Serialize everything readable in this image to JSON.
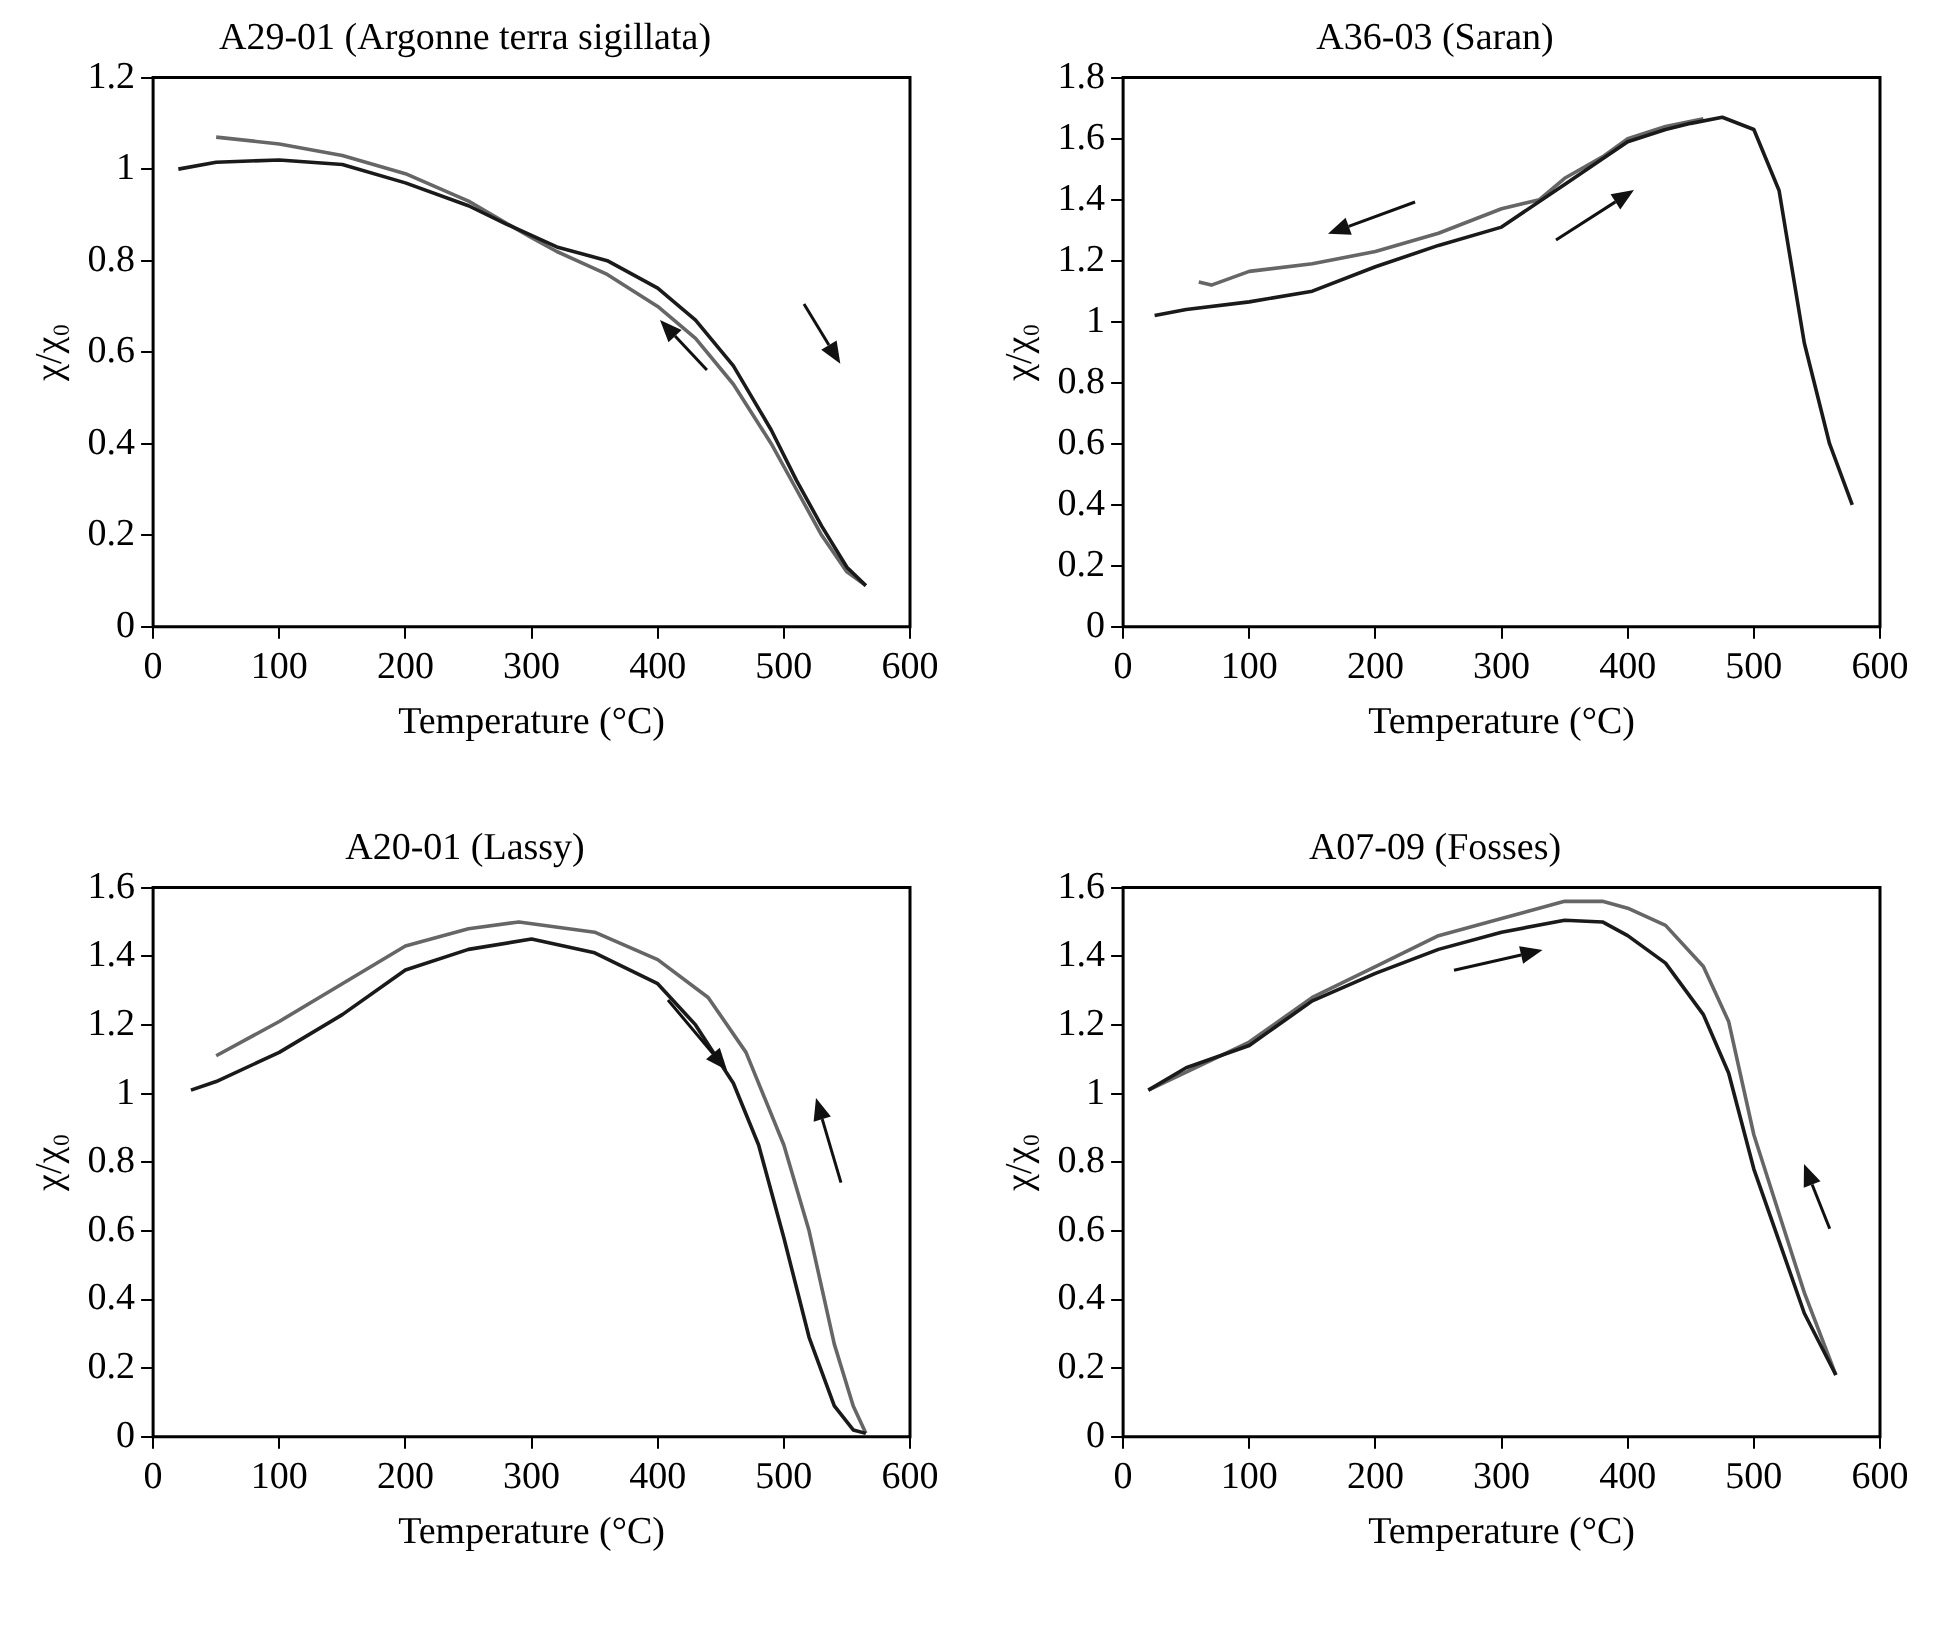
{
  "chart_data": [
    {
      "type": "line",
      "title": "A29-01 (Argonne terra sigillata)",
      "xlabel": "Temperature (°C)",
      "ylabel": "χ/χ₀",
      "xlim": [
        0,
        600
      ],
      "xticks": [
        0,
        100,
        200,
        300,
        400,
        500,
        600
      ],
      "ylim": [
        0,
        1.2
      ],
      "yticks": [
        0,
        0.2,
        0.4,
        0.6,
        0.8,
        1,
        1.2
      ],
      "grid": false,
      "legend": false,
      "series": [
        {
          "color": "#1a1a1a",
          "x": [
            20,
            50,
            100,
            150,
            200,
            250,
            280,
            320,
            360,
            400,
            430,
            460,
            490,
            510,
            530,
            550,
            565
          ],
          "values": [
            1.0,
            1.015,
            1.02,
            1.01,
            0.97,
            0.92,
            0.88,
            0.83,
            0.8,
            0.74,
            0.67,
            0.57,
            0.43,
            0.32,
            0.22,
            0.13,
            0.09
          ]
        },
        {
          "color": "#666666",
          "x": [
            50,
            100,
            150,
            200,
            250,
            300,
            320,
            360,
            400,
            430,
            460,
            490,
            510,
            530,
            550,
            565
          ],
          "values": [
            1.07,
            1.055,
            1.03,
            0.99,
            0.93,
            0.85,
            0.82,
            0.77,
            0.7,
            0.63,
            0.53,
            0.4,
            0.3,
            0.2,
            0.12,
            0.09
          ]
        }
      ]
    },
    {
      "type": "line",
      "title": "A36-03 (Saran)",
      "xlabel": "Temperature (°C)",
      "ylabel": "χ/χ₀",
      "xlim": [
        0,
        600
      ],
      "xticks": [
        0,
        100,
        200,
        300,
        400,
        500,
        600
      ],
      "ylim": [
        0,
        1.8
      ],
      "yticks": [
        0,
        0.2,
        0.4,
        0.6,
        0.8,
        1,
        1.2,
        1.4,
        1.6,
        1.8
      ],
      "grid": false,
      "legend": false,
      "series": [
        {
          "color": "#1a1a1a",
          "x": [
            25,
            50,
            100,
            150,
            200,
            250,
            300,
            350,
            400,
            430,
            450,
            475,
            500,
            520,
            540,
            560,
            578
          ],
          "values": [
            1.02,
            1.04,
            1.065,
            1.1,
            1.18,
            1.25,
            1.31,
            1.45,
            1.59,
            1.63,
            1.65,
            1.67,
            1.63,
            1.43,
            0.93,
            0.6,
            0.4
          ]
        },
        {
          "color": "#666666",
          "x": [
            60,
            70,
            100,
            150,
            200,
            250,
            300,
            330,
            350,
            380,
            400,
            430,
            460
          ],
          "values": [
            1.13,
            1.12,
            1.165,
            1.19,
            1.23,
            1.29,
            1.37,
            1.4,
            1.47,
            1.54,
            1.6,
            1.64,
            1.665
          ]
        }
      ]
    },
    {
      "type": "line",
      "title": "A20-01 (Lassy)",
      "xlabel": "Temperature (°C)",
      "ylabel": "χ/χ₀",
      "xlim": [
        0,
        600
      ],
      "xticks": [
        0,
        100,
        200,
        300,
        400,
        500,
        600
      ],
      "ylim": [
        0,
        1.6
      ],
      "yticks": [
        0,
        0.2,
        0.4,
        0.6,
        0.8,
        1,
        1.2,
        1.4,
        1.6
      ],
      "grid": false,
      "legend": false,
      "series": [
        {
          "color": "#1a1a1a",
          "x": [
            30,
            50,
            100,
            150,
            200,
            250,
            300,
            350,
            400,
            430,
            460,
            480,
            500,
            520,
            540,
            555,
            565
          ],
          "values": [
            1.01,
            1.035,
            1.12,
            1.23,
            1.36,
            1.42,
            1.45,
            1.41,
            1.32,
            1.2,
            1.03,
            0.85,
            0.58,
            0.29,
            0.09,
            0.02,
            0.01
          ]
        },
        {
          "color": "#666666",
          "x": [
            50,
            100,
            150,
            200,
            250,
            290,
            350,
            400,
            440,
            470,
            500,
            520,
            540,
            555,
            565
          ],
          "values": [
            1.11,
            1.21,
            1.32,
            1.43,
            1.48,
            1.5,
            1.47,
            1.39,
            1.28,
            1.12,
            0.85,
            0.6,
            0.27,
            0.09,
            0.01
          ]
        }
      ]
    },
    {
      "type": "line",
      "title": "A07-09 (Fosses)",
      "xlabel": "Temperature (°C)",
      "ylabel": "χ/χ₀",
      "xlim": [
        0,
        600
      ],
      "xticks": [
        0,
        100,
        200,
        300,
        400,
        500,
        600
      ],
      "ylim": [
        0,
        1.6
      ],
      "yticks": [
        0,
        0.2,
        0.4,
        0.6,
        0.8,
        1,
        1.2,
        1.4,
        1.6
      ],
      "grid": false,
      "legend": false,
      "series": [
        {
          "color": "#1a1a1a",
          "x": [
            20,
            50,
            100,
            150,
            200,
            250,
            300,
            350,
            380,
            400,
            430,
            460,
            480,
            500,
            520,
            540,
            565
          ],
          "values": [
            1.01,
            1.075,
            1.14,
            1.27,
            1.35,
            1.42,
            1.47,
            1.505,
            1.5,
            1.46,
            1.38,
            1.23,
            1.06,
            0.78,
            0.57,
            0.36,
            0.18
          ]
        },
        {
          "color": "#666666",
          "x": [
            20,
            100,
            150,
            200,
            250,
            300,
            350,
            380,
            400,
            430,
            460,
            480,
            500,
            520,
            540,
            565
          ],
          "values": [
            1.01,
            1.15,
            1.28,
            1.37,
            1.46,
            1.51,
            1.56,
            1.56,
            1.54,
            1.49,
            1.37,
            1.21,
            0.88,
            0.65,
            0.42,
            0.18
          ]
        }
      ]
    }
  ]
}
